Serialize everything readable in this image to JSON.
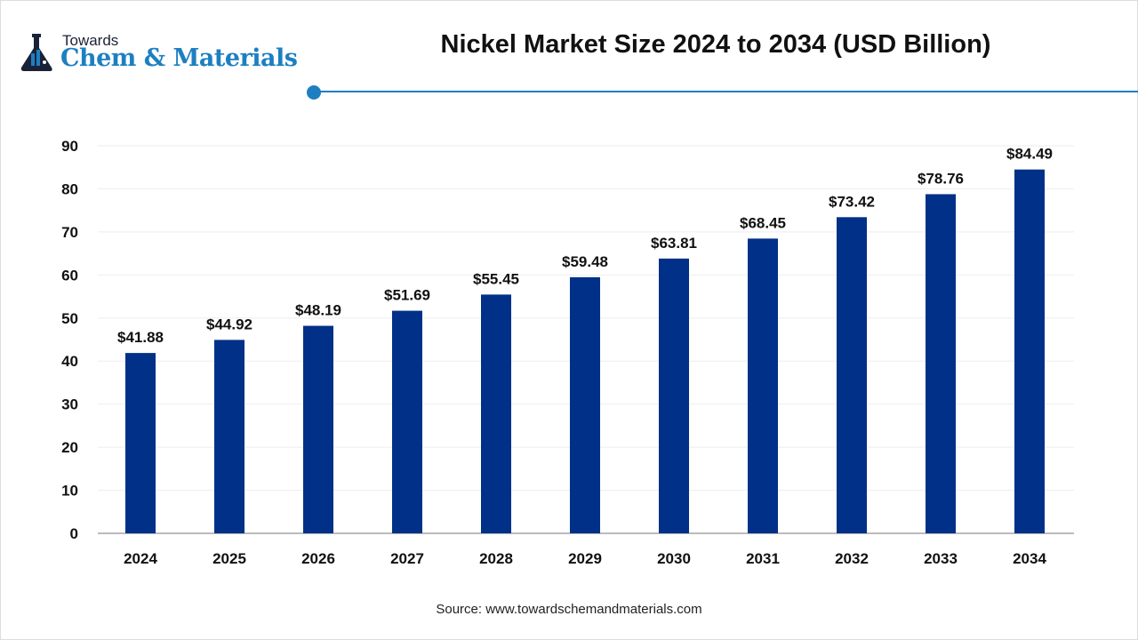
{
  "logo": {
    "line1": "Towards",
    "line2": "Chem & Materials"
  },
  "colors": {
    "bar": "#003087",
    "accent": "#1d7fc2",
    "grid": "#eeeeee",
    "axis": "#bbbbbb"
  },
  "source": "Source: www.towardschemandmaterials.com",
  "chart_data": {
    "type": "bar",
    "title": "Nickel Market Size 2024 to 2034 (USD Billion)",
    "xlabel": "",
    "ylabel": "",
    "categories": [
      "2024",
      "2025",
      "2026",
      "2027",
      "2028",
      "2029",
      "2030",
      "2031",
      "2032",
      "2033",
      "2034"
    ],
    "values": [
      41.88,
      44.92,
      48.19,
      51.69,
      55.45,
      59.48,
      63.81,
      68.45,
      73.42,
      78.76,
      84.49
    ],
    "data_labels": [
      "$41.88",
      "$44.92",
      "$48.19",
      "$51.69",
      "$55.45",
      "$59.48",
      "$63.81",
      "$68.45",
      "$73.42",
      "$78.76",
      "$84.49"
    ],
    "ylim": [
      0,
      90
    ],
    "yticks": [
      0,
      10,
      20,
      30,
      40,
      50,
      60,
      70,
      80,
      90
    ],
    "grid": true,
    "legend": "none"
  }
}
